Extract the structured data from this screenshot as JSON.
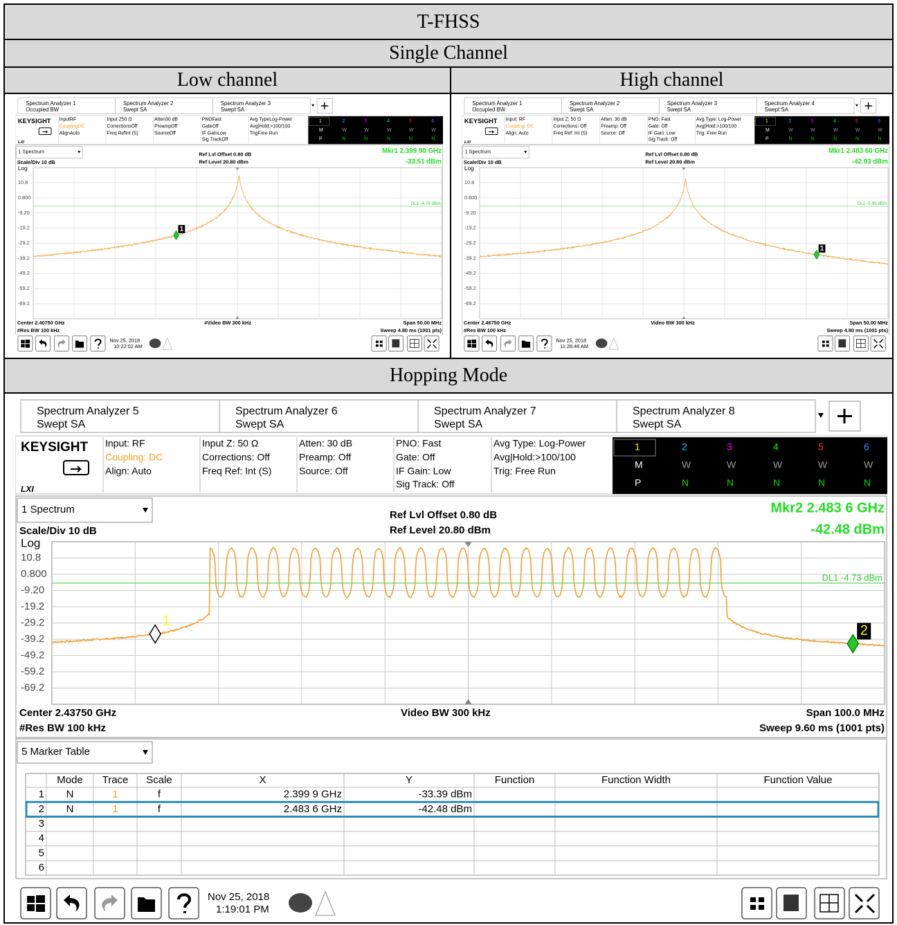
{
  "table": {
    "title": "T-FHSS",
    "section1": "Single Channel",
    "low_header": "Low channel",
    "high_header": "High channel",
    "section2": "Hopping Mode"
  },
  "analyzers": [
    {
      "tabs": [
        {
          "name": "Spectrum Analyzer 1",
          "mode": "Occupied BW"
        },
        {
          "name": "Spectrum Analyzer 2",
          "mode": "Swept SA"
        },
        {
          "name": "Spectrum Analyzer 3",
          "mode": "Swept SA"
        }
      ],
      "brand": "KEYSIGHT",
      "lxi": "LXI",
      "settings": [
        [
          "InputRF",
          "CouplingDC",
          "AlignAuto"
        ],
        [
          "Input Z50 Ω",
          "CorrectionsOff",
          "Freq RefInt (S)"
        ],
        [
          "Atten30 dB",
          "PreampOff",
          "SourceOff"
        ],
        [
          "PNOFast",
          "GateOff",
          "IF GainLow",
          "Sig TrackOff"
        ],
        [
          "Avg TypeLog-Power",
          "Avg|Hold:>100/100",
          "TrigFree Run"
        ]
      ],
      "trace_panel": {
        "numbers": [
          "1",
          "2",
          "3",
          "4",
          "5",
          "6"
        ],
        "rows": [
          [
            "M",
            "W",
            "W",
            "W",
            "W",
            "W"
          ],
          [
            "P",
            "N",
            "N",
            "N",
            "N",
            "N"
          ]
        ]
      },
      "window": "1 Spectrum",
      "scale": "Scale/Div 10 dB",
      "ref_offset": "Ref Lvl Offset 0.80 dB",
      "ref_level": "Ref Level 20.80 dBm",
      "readout": [
        "Mkr1  2.399 90 GHz",
        "-33.51 dBm"
      ],
      "log": "Log",
      "y_labels": [
        "10.8",
        "0.800",
        "-9.20",
        "-19.2",
        "-29.2",
        "-39.2",
        "-49.2",
        "-59.2",
        "-69.2"
      ],
      "dl_label": "DL1 -4.78 dBm",
      "marker_labels": [
        "1"
      ],
      "center": "Center 2.40750 GHz",
      "res_bw": "#Res BW 100 kHz",
      "video_bw": "#Video BW 300 kHz",
      "span": "Span 50.00 MHz",
      "sweep": "Sweep 4.80 ms (1001 pts)",
      "date": "Nov 25, 2018",
      "time": "10:22:02 AM"
    },
    {
      "tabs": [
        {
          "name": "Spectrum Analyzer 1",
          "mode": "Occupied BW"
        },
        {
          "name": "Spectrum Analyzer 2",
          "mode": "Swept SA"
        },
        {
          "name": "Spectrum Analyzer 3",
          "mode": "Swept SA"
        },
        {
          "name": "Spectrum Analyzer 4",
          "mode": "Swept SA"
        }
      ],
      "brand": "KEYSIGHT",
      "lxi": "LXI",
      "settings": [
        [
          "Input: RF",
          "Coupling: DC",
          "Align: Auto"
        ],
        [
          "Input Z: 50 Ω",
          "Corrections: Off",
          "Freq Ref: Int (S)"
        ],
        [
          "Atten: 30 dB",
          "Preamp: Off",
          "Source: Off"
        ],
        [
          "PNO: Fast",
          "Gate: Off",
          "IF Gain: Low",
          "Sig Track: Off"
        ],
        [
          "Avg Type: Log-Power",
          "Avg|Hold:>100/100",
          "Trig: Free Run"
        ]
      ],
      "trace_panel": {
        "numbers": [
          "1",
          "2",
          "3",
          "4",
          "5",
          "6"
        ],
        "rows": [
          [
            "M",
            "W",
            "W",
            "W",
            "W",
            "W"
          ],
          [
            "P",
            "N",
            "N",
            "N",
            "N",
            "N"
          ]
        ]
      },
      "window": "1 Spectrum",
      "scale": "Scale/Div 10 dB",
      "ref_offset": "Ref Lvl Offset 0.80 dB",
      "ref_level": "Ref Level 20.80 dBm",
      "readout": [
        "Mkr1  2.483 60 GHz",
        "-42.93 dBm"
      ],
      "log": "Log",
      "y_labels": [
        "10.8",
        "0.800",
        "-9.20",
        "-19.2",
        "-29.2",
        "-39.2",
        "-49.2",
        "-59.2",
        "-69.2"
      ],
      "dl_label": "DL1 -5.95 dBm",
      "marker_labels": [
        "1"
      ],
      "center": "Center 2.46750 GHz",
      "res_bw": "#Res BW 100 kHz",
      "video_bw": "Video BW 300 kHz",
      "span": "Span 50.00 MHz",
      "sweep": "Sweep 4.80 ms (1001 pts)",
      "date": "Nov 25, 2018",
      "time": "11:28:46 AM"
    },
    {
      "tabs": [
        {
          "name": "Spectrum Analyzer 5",
          "mode": "Swept SA"
        },
        {
          "name": "Spectrum Analyzer 6",
          "mode": "Swept SA"
        },
        {
          "name": "Spectrum Analyzer 7",
          "mode": "Swept SA"
        },
        {
          "name": "Spectrum Analyzer 8",
          "mode": "Swept SA"
        }
      ],
      "brand": "KEYSIGHT",
      "lxi": "LXI",
      "settings": [
        [
          "Input: RF",
          "Coupling: DC",
          "Align: Auto"
        ],
        [
          "Input Z: 50 Ω",
          "Corrections: Off",
          "Freq Ref: Int (S)"
        ],
        [
          "Atten: 30 dB",
          "Preamp: Off",
          "Source: Off"
        ],
        [
          "PNO: Fast",
          "Gate: Off",
          "IF Gain: Low",
          "Sig Track: Off"
        ],
        [
          "Avg Type: Log-Power",
          "Avg|Hold:>100/100",
          "Trig: Free Run"
        ]
      ],
      "trace_panel": {
        "numbers": [
          "1",
          "2",
          "3",
          "4",
          "5",
          "6"
        ],
        "rows": [
          [
            "M",
            "W",
            "W",
            "W",
            "W",
            "W"
          ],
          [
            "P",
            "N",
            "N",
            "N",
            "N",
            "N"
          ]
        ]
      },
      "window": "1 Spectrum",
      "scale": "Scale/Div 10 dB",
      "ref_offset": "Ref Lvl Offset 0.80 dB",
      "ref_level": "Ref Level 20.80 dBm",
      "readout": [
        "Mkr2  2.483 6 GHz",
        "-42.48 dBm"
      ],
      "log": "Log",
      "y_labels": [
        "10.8",
        "0.800",
        "-9.20",
        "-19.2",
        "-29.2",
        "-39.2",
        "-49.2",
        "-59.2",
        "-69.2"
      ],
      "dl_label": "DL1 -4.73 dBm",
      "marker_labels": [
        "1",
        "2"
      ],
      "center": "Center 2.43750 GHz",
      "res_bw": "#Res BW 100 kHz",
      "video_bw": "Video BW 300 kHz",
      "span": "Span 100.0 MHz",
      "sweep": "Sweep 9.60 ms (1001 pts)",
      "marker_table": {
        "window": "5 Marker Table",
        "headers": [
          "Mode",
          "Trace",
          "Scale",
          "X",
          "Y",
          "Function",
          "Function Width",
          "Function Value"
        ],
        "rows": [
          [
            "1",
            "N",
            "1",
            "f",
            "2.399 9 GHz",
            "-33.39 dBm"
          ],
          [
            "2",
            "N",
            "1",
            "f",
            "2.483 6 GHz",
            "-42.48 dBm"
          ],
          [
            "3"
          ],
          [
            "4"
          ],
          [
            "5"
          ],
          [
            "6"
          ]
        ]
      },
      "date": "Nov 25, 2018",
      "time": "1:19:01 PM"
    }
  ]
}
